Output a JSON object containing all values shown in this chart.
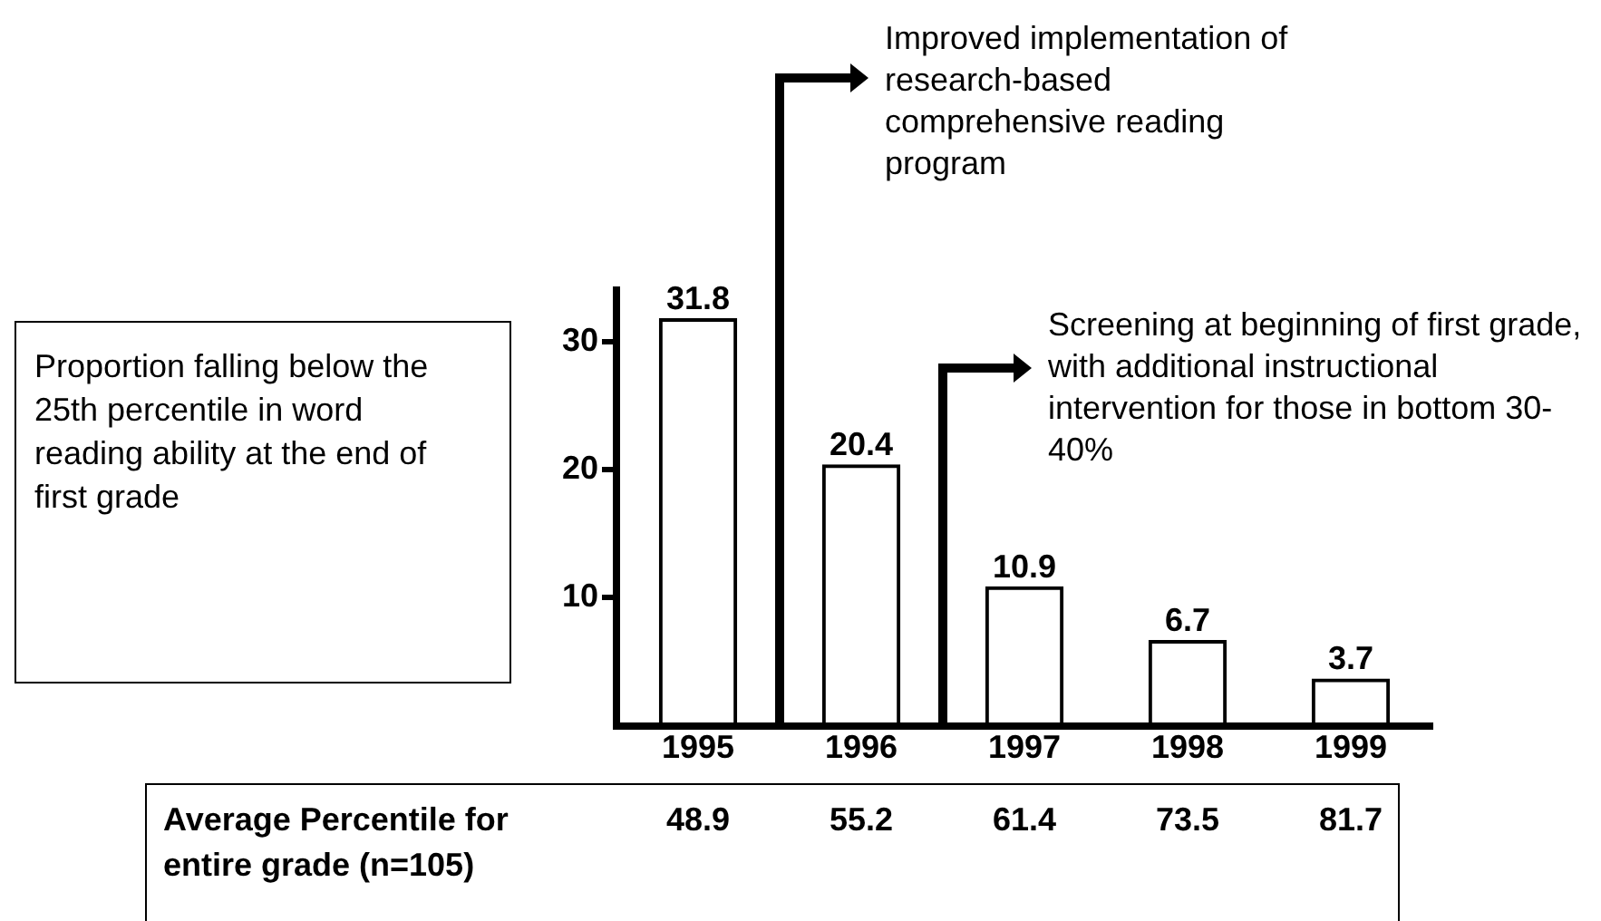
{
  "chart_data": {
    "type": "bar",
    "categories": [
      "1995",
      "1996",
      "1997",
      "1998",
      "1999"
    ],
    "values": [
      31.8,
      20.4,
      10.9,
      6.7,
      3.7
    ],
    "color": "#000000",
    "ylim": [
      0,
      34
    ],
    "yticks": [
      10,
      20,
      30
    ],
    "ylabel": "Proportion falling below the 25th percentile in word reading ability at the end of first grade",
    "data_labels": true,
    "grid": false,
    "legend": false,
    "annotations": [
      "Improved implementation of research-based comprehensive reading program",
      "Screening at beginning of first grade, with additional instructional intervention for those in bottom 30-40%",
      "Average Percentile for entire grade (n=105)",
      "48.9",
      "55.2",
      "61.4",
      "73.5",
      "81.7"
    ]
  }
}
